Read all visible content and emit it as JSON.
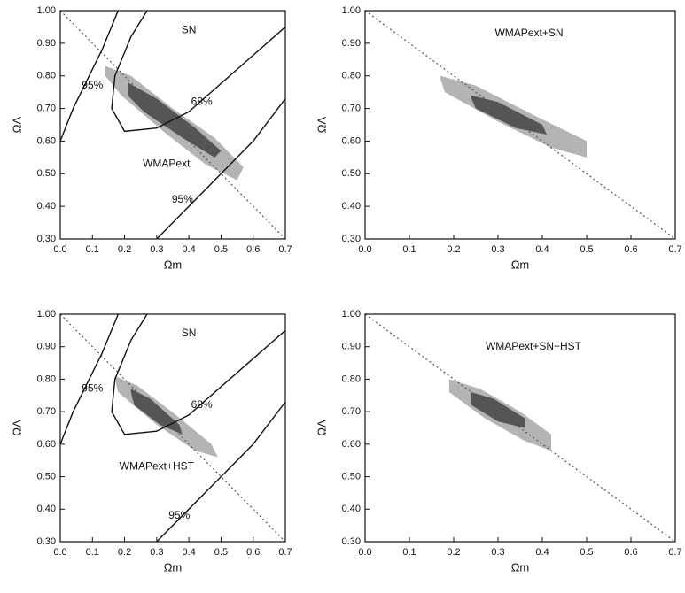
{
  "chart_data": [
    {
      "type": "contour",
      "xlabel": "Ωm",
      "ylabel": "ΩΛ",
      "xlim": [
        0,
        0.7
      ],
      "ylim": [
        0.3,
        1.0
      ],
      "xticks": [
        {
          "value": 0,
          "label": "0.0"
        },
        0.1,
        0.2,
        0.3,
        0.4,
        0.5,
        0.6,
        0.7
      ],
      "yticks": [
        {
          "value": 0.3,
          "label": "0.30"
        },
        {
          "value": 0.4,
          "label": "0.40"
        },
        {
          "value": 0.5,
          "label": "0.50"
        },
        {
          "value": 0.6,
          "label": "0.60"
        },
        {
          "value": 0.7,
          "label": "0.70"
        },
        {
          "value": 0.8,
          "label": "0.80"
        },
        {
          "value": 0.9,
          "label": "0.90"
        },
        {
          "value": 1.0,
          "label": "1.00"
        }
      ],
      "series": [
        {
          "style": "filled",
          "color": "#b4b4b4",
          "x": [
            0.14,
            0.22,
            0.35,
            0.48,
            0.57,
            0.55,
            0.45,
            0.32,
            0.19,
            0.14
          ],
          "y": [
            0.83,
            0.8,
            0.7,
            0.61,
            0.52,
            0.48,
            0.53,
            0.63,
            0.74,
            0.8
          ]
        },
        {
          "style": "filled",
          "color": "#555555",
          "x": [
            0.21,
            0.3,
            0.42,
            0.5,
            0.48,
            0.38,
            0.26,
            0.21
          ],
          "y": [
            0.78,
            0.73,
            0.64,
            0.57,
            0.55,
            0.61,
            0.69,
            0.74
          ]
        },
        {
          "style": "dotted",
          "color": "#555555",
          "x": [
            0,
            0.7
          ],
          "y": [
            1.0,
            0.3
          ]
        },
        {
          "style": "line",
          "color": "#111111",
          "x": [
            0.27,
            0.22,
            0.17,
            0.16,
            0.2,
            0.3,
            0.4,
            0.55,
            0.7
          ],
          "y": [
            1.0,
            0.92,
            0.8,
            0.7,
            0.63,
            0.64,
            0.69,
            0.82,
            0.95
          ]
        },
        {
          "style": "line",
          "color": "#111111",
          "x": [
            0,
            0.04,
            0.08,
            0.13,
            0.18
          ],
          "y": [
            0.6,
            0.7,
            0.78,
            0.88,
            1.0
          ]
        },
        {
          "style": "line",
          "color": "#111111",
          "x": [
            0.3,
            0.45,
            0.6,
            0.7
          ],
          "y": [
            0.3,
            0.45,
            0.6,
            0.73
          ]
        }
      ],
      "annotations": [
        "SN",
        "95%",
        "68%",
        "WMAPext",
        "95%"
      ]
    },
    {
      "type": "contour",
      "xlabel": "Ωm",
      "ylabel": "ΩΛ",
      "xlim": [
        0,
        0.7
      ],
      "ylim": [
        0.3,
        1.0
      ],
      "xticks": [
        {
          "value": 0,
          "label": "0.0"
        },
        0.1,
        0.2,
        0.3,
        0.4,
        0.5,
        0.6,
        0.7
      ],
      "yticks": [
        {
          "value": 0.3,
          "label": "0.30"
        },
        {
          "value": 0.4,
          "label": "0.40"
        },
        {
          "value": 0.5,
          "label": "0.50"
        },
        {
          "value": 0.6,
          "label": "0.60"
        },
        {
          "value": 0.7,
          "label": "0.70"
        },
        {
          "value": 0.8,
          "label": "0.80"
        },
        {
          "value": 0.9,
          "label": "0.90"
        },
        {
          "value": 1.0,
          "label": "1.00"
        }
      ],
      "series": [
        {
          "style": "filled",
          "color": "#b4b4b4",
          "x": [
            0.17,
            0.25,
            0.38,
            0.5,
            0.5,
            0.42,
            0.3,
            0.18,
            0.17
          ],
          "y": [
            0.8,
            0.77,
            0.68,
            0.6,
            0.55,
            0.58,
            0.66,
            0.75,
            0.79
          ]
        },
        {
          "style": "filled",
          "color": "#555555",
          "x": [
            0.24,
            0.3,
            0.4,
            0.41,
            0.34,
            0.25,
            0.24
          ],
          "y": [
            0.74,
            0.72,
            0.65,
            0.62,
            0.64,
            0.7,
            0.73
          ]
        },
        {
          "style": "dotted",
          "color": "#555555",
          "x": [
            0,
            0.7
          ],
          "y": [
            1.0,
            0.3
          ]
        }
      ],
      "annotations": [
        "WMAPext+SN"
      ]
    },
    {
      "type": "contour",
      "xlabel": "Ωm",
      "ylabel": "ΩΛ",
      "xlim": [
        0,
        0.7
      ],
      "ylim": [
        0.3,
        1.0
      ],
      "xticks": [
        {
          "value": 0,
          "label": "0.0"
        },
        0.1,
        0.2,
        0.3,
        0.4,
        0.5,
        0.6,
        0.7
      ],
      "yticks": [
        {
          "value": 0.3,
          "label": "0.30"
        },
        {
          "value": 0.4,
          "label": "0.40"
        },
        {
          "value": 0.5,
          "label": "0.50"
        },
        {
          "value": 0.6,
          "label": "0.60"
        },
        {
          "value": 0.7,
          "label": "0.70"
        },
        {
          "value": 0.8,
          "label": "0.80"
        },
        {
          "value": 0.9,
          "label": "0.90"
        },
        {
          "value": 1.0,
          "label": "1.00"
        }
      ],
      "series": [
        {
          "style": "filled",
          "color": "#b4b4b4",
          "x": [
            0.17,
            0.24,
            0.36,
            0.47,
            0.49,
            0.42,
            0.3,
            0.18,
            0.17
          ],
          "y": [
            0.81,
            0.78,
            0.69,
            0.6,
            0.56,
            0.58,
            0.66,
            0.76,
            0.8
          ]
        },
        {
          "style": "filled",
          "color": "#555555",
          "x": [
            0.22,
            0.28,
            0.37,
            0.38,
            0.31,
            0.23,
            0.22
          ],
          "y": [
            0.77,
            0.74,
            0.66,
            0.63,
            0.66,
            0.72,
            0.76
          ]
        },
        {
          "style": "dotted",
          "color": "#555555",
          "x": [
            0,
            0.7
          ],
          "y": [
            1.0,
            0.3
          ]
        },
        {
          "style": "line",
          "color": "#111111",
          "x": [
            0.27,
            0.22,
            0.17,
            0.16,
            0.2,
            0.3,
            0.4,
            0.55,
            0.7
          ],
          "y": [
            1.0,
            0.92,
            0.8,
            0.7,
            0.63,
            0.64,
            0.69,
            0.82,
            0.95
          ]
        },
        {
          "style": "line",
          "color": "#111111",
          "x": [
            0,
            0.04,
            0.08,
            0.13,
            0.18
          ],
          "y": [
            0.6,
            0.7,
            0.78,
            0.88,
            1.0
          ]
        },
        {
          "style": "line",
          "color": "#111111",
          "x": [
            0.3,
            0.45,
            0.6,
            0.7
          ],
          "y": [
            0.3,
            0.45,
            0.6,
            0.73
          ]
        }
      ],
      "annotations": [
        "SN",
        "95%",
        "68%",
        "WMAPext+HST",
        "95%"
      ]
    },
    {
      "type": "contour",
      "xlabel": "Ωm",
      "ylabel": "ΩΛ",
      "xlim": [
        0,
        0.7
      ],
      "ylim": [
        0.3,
        1.0
      ],
      "xticks": [
        {
          "value": 0,
          "label": "0.0"
        },
        0.1,
        0.2,
        0.3,
        0.4,
        0.5,
        0.6,
        0.7
      ],
      "yticks": [
        {
          "value": 0.3,
          "label": "0.30"
        },
        {
          "value": 0.4,
          "label": "0.40"
        },
        {
          "value": 0.5,
          "label": "0.50"
        },
        {
          "value": 0.6,
          "label": "0.60"
        },
        {
          "value": 0.7,
          "label": "0.70"
        },
        {
          "value": 0.8,
          "label": "0.80"
        },
        {
          "value": 0.9,
          "label": "0.90"
        },
        {
          "value": 1.0,
          "label": "1.00"
        }
      ],
      "series": [
        {
          "style": "filled",
          "color": "#b4b4b4",
          "x": [
            0.19,
            0.26,
            0.35,
            0.42,
            0.42,
            0.36,
            0.27,
            0.19,
            0.19
          ],
          "y": [
            0.8,
            0.77,
            0.7,
            0.63,
            0.58,
            0.61,
            0.68,
            0.76,
            0.79
          ]
        },
        {
          "style": "filled",
          "color": "#555555",
          "x": [
            0.24,
            0.29,
            0.36,
            0.36,
            0.3,
            0.24,
            0.24
          ],
          "y": [
            0.76,
            0.74,
            0.68,
            0.65,
            0.67,
            0.72,
            0.75
          ]
        },
        {
          "style": "dotted",
          "color": "#555555",
          "x": [
            0,
            0.7
          ],
          "y": [
            1.0,
            0.3
          ]
        }
      ],
      "annotations": [
        "WMAPext+SN+HST"
      ]
    }
  ]
}
